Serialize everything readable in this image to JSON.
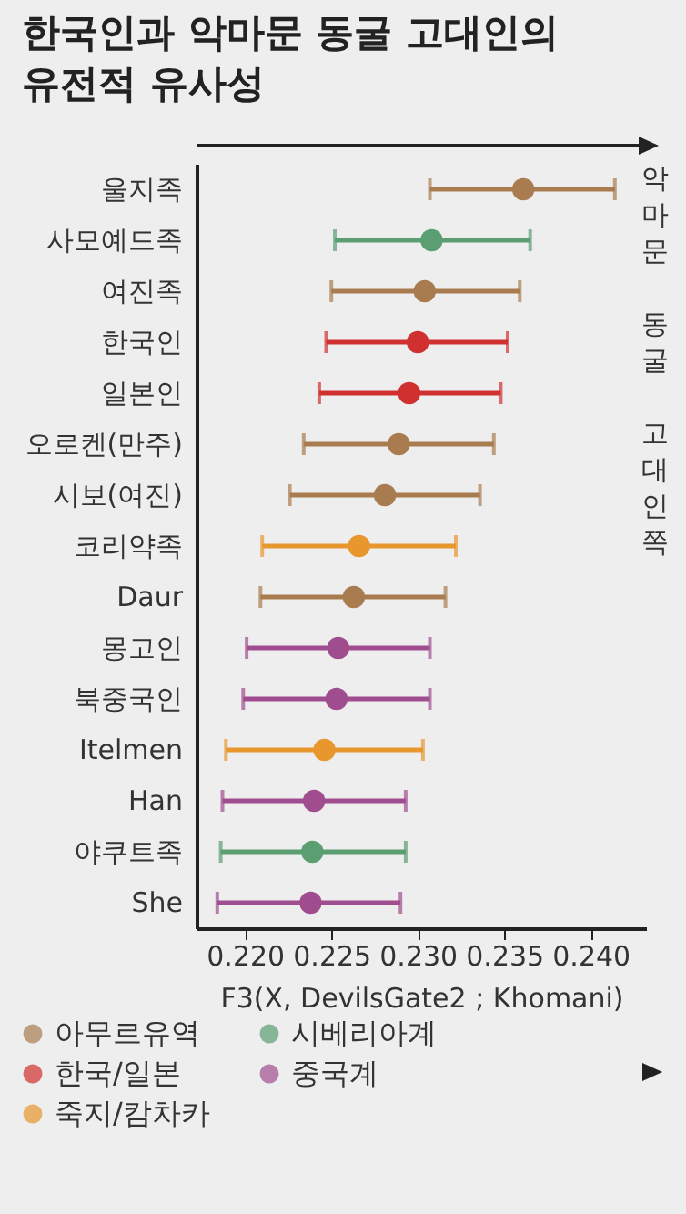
{
  "chart_data": {
    "type": "scatter",
    "orientation": "horizontal",
    "title": "한국인과 악마문 동굴 고대인의 유전적 유사성",
    "xlabel": "F3(X, DevilsGate2 ; Khomani)",
    "annotations": [
      "악마문 동굴 고대인쪽"
    ],
    "categories": [
      "울지족",
      "사모예드족",
      "여진족",
      "한국인",
      "일본인",
      "오로켄(만주)",
      "시보(여진)",
      "코리약족",
      "Daur",
      "몽고인",
      "북중국인",
      "Itelmen",
      "Han",
      "야쿠트족",
      "She"
    ],
    "xlim": [
      0.2172,
      0.2432
    ],
    "xticks": [
      {
        "value": 0.22,
        "label": "0.220"
      },
      {
        "value": 0.225,
        "label": "0.225"
      },
      {
        "value": 0.23,
        "label": "0.230"
      },
      {
        "value": 0.235,
        "label": "0.235"
      },
      {
        "value": 0.24,
        "label": "0.240"
      }
    ],
    "marker": "circle",
    "legend": "bottom",
    "series": [
      {
        "name": "아무르유역",
        "color": "#a87c4f",
        "values": [
          0.2361,
          null,
          0.2304,
          null,
          null,
          0.2289,
          0.2281,
          null,
          0.2263,
          null,
          null,
          null,
          null,
          null,
          null
        ],
        "errors": [
          [
            0.2307,
            0.2414
          ],
          null,
          [
            0.225,
            0.2359
          ],
          null,
          null,
          [
            0.2234,
            0.2344
          ],
          [
            0.2226,
            0.2336
          ],
          null,
          [
            0.2209,
            0.2316
          ],
          null,
          null,
          null,
          null,
          null,
          null
        ]
      },
      {
        "name": "한국/일본",
        "color": "#d03030",
        "values": [
          null,
          null,
          null,
          0.23,
          0.2295,
          null,
          null,
          null,
          null,
          null,
          null,
          null,
          null,
          null,
          null
        ],
        "errors": [
          null,
          null,
          null,
          [
            0.2247,
            0.2352
          ],
          [
            0.2243,
            0.2348
          ],
          null,
          null,
          null,
          null,
          null,
          null,
          null,
          null,
          null,
          null
        ]
      },
      {
        "name": "죽지/캄차카",
        "color": "#e8962e",
        "values": [
          null,
          null,
          null,
          null,
          null,
          null,
          null,
          0.2266,
          null,
          null,
          null,
          0.2246,
          null,
          null,
          null
        ],
        "errors": [
          null,
          null,
          null,
          null,
          null,
          null,
          null,
          [
            0.221,
            0.2322
          ],
          null,
          null,
          null,
          [
            0.2189,
            0.2303
          ],
          null,
          null,
          null
        ]
      },
      {
        "name": "시베리아계",
        "color": "#5a9e72",
        "values": [
          null,
          0.2308,
          null,
          null,
          null,
          null,
          null,
          null,
          null,
          null,
          null,
          null,
          null,
          0.2239,
          null
        ],
        "errors": [
          null,
          [
            0.2252,
            0.2365
          ],
          null,
          null,
          null,
          null,
          null,
          null,
          null,
          null,
          null,
          null,
          null,
          [
            0.2186,
            0.2293
          ],
          null
        ]
      },
      {
        "name": "중국계",
        "color": "#a04d8f",
        "values": [
          null,
          null,
          null,
          null,
          null,
          null,
          null,
          null,
          null,
          0.2254,
          0.2253,
          null,
          0.224,
          null,
          0.2238
        ],
        "errors": [
          null,
          null,
          null,
          null,
          null,
          null,
          null,
          null,
          null,
          [
            0.2201,
            0.2307
          ],
          [
            0.2199,
            0.2307
          ],
          null,
          [
            0.2187,
            0.2293
          ],
          null,
          [
            0.2184,
            0.229
          ]
        ]
      }
    ]
  }
}
